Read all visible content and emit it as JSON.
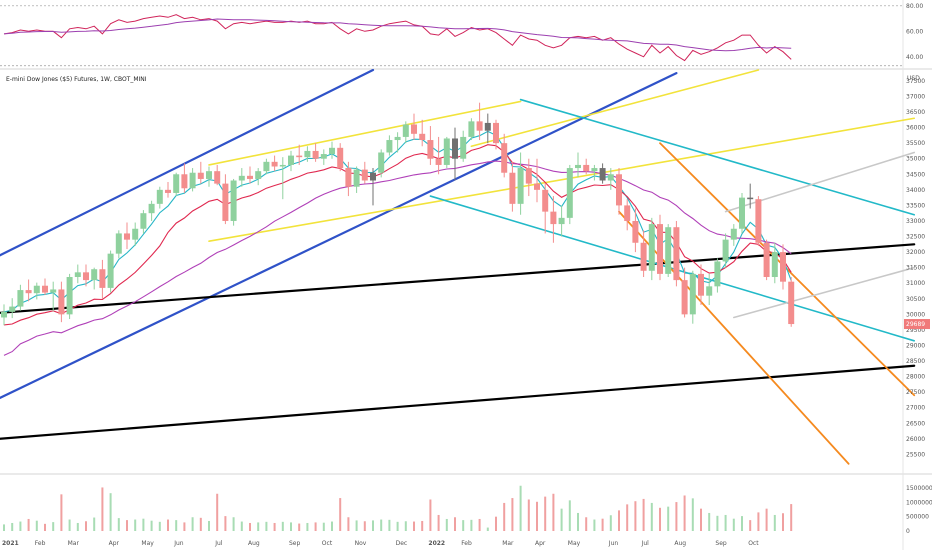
{
  "chart_data": {
    "type": "candlestick",
    "title": "E-mini Dow Jones ($5) Futures, 1W, CBOT_MINI",
    "price_axis": {
      "unit_label": "USD",
      "range": [
        25000,
        37850
      ],
      "ticks": [
        "37500",
        "37000",
        "36500",
        "36000",
        "35500",
        "35000",
        "34500",
        "34000",
        "33500",
        "33000",
        "32500",
        "32000",
        "31500",
        "31000",
        "30500",
        "30000",
        "29500",
        "29000",
        "28500",
        "28000",
        "27500",
        "27000",
        "26500",
        "26000",
        "25500"
      ],
      "last_price": "29689",
      "last_value": 29689
    },
    "rsi_axis": {
      "range": [
        32,
        83
      ],
      "ticks": [
        "80.00",
        "60.00",
        "40.00"
      ]
    },
    "volume_axis": {
      "range": [
        0,
        1850000
      ],
      "ticks": [
        "1500000",
        "1000000",
        "500000",
        "0"
      ]
    },
    "time_axis": {
      "labels": [
        "2021",
        "Feb",
        "Mar",
        "Apr",
        "May",
        "Jun",
        "Jul",
        "Aug",
        "Sep",
        "Oct",
        "Nov",
        "Dec",
        "2022",
        "Feb",
        "Mar",
        "Apr",
        "May",
        "Jun",
        "Jul",
        "Aug",
        "Sep",
        "Oct"
      ]
    },
    "colors": {
      "up": "#8fd19e",
      "down": "#f38d8d",
      "neutral": "#707070",
      "ema_fast": "#26b6c6",
      "ema_mid": "#e0284f",
      "ema_slow": "#b040b8",
      "rsi": "#d0245a",
      "rsi_ma": "#9c3fb0",
      "label_bg": "#f07a7a",
      "blue_trend": "#2f52c8",
      "yellow_trend": "#f2e33b",
      "black_trend": "#000000",
      "cyan_trend": "#22b9c8",
      "orange_trend": "#f58a1f",
      "gray_trend": "#c8c8c8"
    },
    "candles": [
      {
        "o": 29900,
        "h": 30320,
        "l": 29650,
        "c": 30080,
        "v": 230000
      },
      {
        "o": 30080,
        "h": 30520,
        "l": 29880,
        "c": 30250,
        "v": 280000
      },
      {
        "o": 30250,
        "h": 30950,
        "l": 30120,
        "c": 30780,
        "v": 330000
      },
      {
        "o": 30780,
        "h": 31120,
        "l": 30420,
        "c": 30680,
        "v": 420000
      },
      {
        "o": 30680,
        "h": 31020,
        "l": 30480,
        "c": 30920,
        "v": 360000
      },
      {
        "o": 30920,
        "h": 31150,
        "l": 30620,
        "c": 30700,
        "v": 250000
      },
      {
        "o": 30700,
        "h": 31050,
        "l": 30100,
        "c": 30800,
        "v": 310000
      },
      {
        "o": 30800,
        "h": 31050,
        "l": 29750,
        "c": 30000,
        "v": 1280000
      },
      {
        "o": 30000,
        "h": 31300,
        "l": 29850,
        "c": 31200,
        "v": 400000
      },
      {
        "o": 31200,
        "h": 31600,
        "l": 31000,
        "c": 31350,
        "v": 280000
      },
      {
        "o": 31350,
        "h": 31600,
        "l": 30900,
        "c": 31100,
        "v": 340000
      },
      {
        "o": 31100,
        "h": 31500,
        "l": 30800,
        "c": 31450,
        "v": 470000
      },
      {
        "o": 31450,
        "h": 31750,
        "l": 30500,
        "c": 30850,
        "v": 1520000
      },
      {
        "o": 30850,
        "h": 32050,
        "l": 30700,
        "c": 31950,
        "v": 1320000
      },
      {
        "o": 31950,
        "h": 32700,
        "l": 31800,
        "c": 32600,
        "v": 450000
      },
      {
        "o": 32600,
        "h": 32950,
        "l": 32100,
        "c": 32400,
        "v": 380000
      },
      {
        "o": 32400,
        "h": 32950,
        "l": 32200,
        "c": 32750,
        "v": 400000
      },
      {
        "o": 32750,
        "h": 33350,
        "l": 32600,
        "c": 33250,
        "v": 430000
      },
      {
        "o": 33250,
        "h": 33650,
        "l": 33000,
        "c": 33550,
        "v": 360000
      },
      {
        "o": 33550,
        "h": 34100,
        "l": 33400,
        "c": 34000,
        "v": 320000
      },
      {
        "o": 34000,
        "h": 34250,
        "l": 33750,
        "c": 33900,
        "v": 400000
      },
      {
        "o": 33900,
        "h": 34550,
        "l": 33800,
        "c": 34500,
        "v": 380000
      },
      {
        "o": 34500,
        "h": 34850,
        "l": 33900,
        "c": 34050,
        "v": 300000
      },
      {
        "o": 34050,
        "h": 34700,
        "l": 33950,
        "c": 34550,
        "v": 480000
      },
      {
        "o": 34550,
        "h": 34900,
        "l": 34200,
        "c": 34350,
        "v": 460000
      },
      {
        "o": 34350,
        "h": 34750,
        "l": 34100,
        "c": 34600,
        "v": 350000
      },
      {
        "o": 34600,
        "h": 34800,
        "l": 34150,
        "c": 34200,
        "v": 1300000
      },
      {
        "o": 34200,
        "h": 34500,
        "l": 32900,
        "c": 33000,
        "v": 520000
      },
      {
        "o": 33000,
        "h": 34350,
        "l": 32850,
        "c": 34300,
        "v": 480000
      },
      {
        "o": 34300,
        "h": 34700,
        "l": 34100,
        "c": 34450,
        "v": 330000
      },
      {
        "o": 34450,
        "h": 34750,
        "l": 34200,
        "c": 34350,
        "v": 280000
      },
      {
        "o": 34350,
        "h": 34700,
        "l": 34150,
        "c": 34600,
        "v": 300000
      },
      {
        "o": 34600,
        "h": 35000,
        "l": 34500,
        "c": 34900,
        "v": 320000
      },
      {
        "o": 34900,
        "h": 35100,
        "l": 34600,
        "c": 34750,
        "v": 280000
      },
      {
        "o": 34750,
        "h": 35050,
        "l": 33700,
        "c": 34800,
        "v": 320000
      },
      {
        "o": 34800,
        "h": 35250,
        "l": 34600,
        "c": 35100,
        "v": 300000
      },
      {
        "o": 35100,
        "h": 35450,
        "l": 34800,
        "c": 35050,
        "v": 260000
      },
      {
        "o": 35050,
        "h": 35400,
        "l": 34900,
        "c": 35250,
        "v": 280000
      },
      {
        "o": 35250,
        "h": 35500,
        "l": 34900,
        "c": 35000,
        "v": 300000
      },
      {
        "o": 35000,
        "h": 35300,
        "l": 34800,
        "c": 35150,
        "v": 290000
      },
      {
        "o": 35150,
        "h": 35550,
        "l": 35000,
        "c": 35350,
        "v": 330000
      },
      {
        "o": 35350,
        "h": 35500,
        "l": 34600,
        "c": 34700,
        "v": 1150000
      },
      {
        "o": 34700,
        "h": 34900,
        "l": 33800,
        "c": 34100,
        "v": 480000
      },
      {
        "o": 34100,
        "h": 34750,
        "l": 33900,
        "c": 34650,
        "v": 370000
      },
      {
        "o": 34650,
        "h": 34900,
        "l": 34200,
        "c": 34300,
        "v": 340000
      },
      {
        "o": 34300,
        "h": 34700,
        "l": 33500,
        "c": 34550,
        "v": 370000
      },
      {
        "o": 34550,
        "h": 35300,
        "l": 34400,
        "c": 35200,
        "v": 400000
      },
      {
        "o": 35200,
        "h": 35750,
        "l": 35100,
        "c": 35600,
        "v": 390000
      },
      {
        "o": 35600,
        "h": 35850,
        "l": 35200,
        "c": 35700,
        "v": 320000
      },
      {
        "o": 35700,
        "h": 36200,
        "l": 35500,
        "c": 36100,
        "v": 340000
      },
      {
        "o": 36100,
        "h": 36450,
        "l": 35600,
        "c": 35800,
        "v": 330000
      },
      {
        "o": 35800,
        "h": 36250,
        "l": 35400,
        "c": 35600,
        "v": 350000
      },
      {
        "o": 35600,
        "h": 36050,
        "l": 34800,
        "c": 35000,
        "v": 1100000
      },
      {
        "o": 35000,
        "h": 35700,
        "l": 34500,
        "c": 34800,
        "v": 560000
      },
      {
        "o": 34800,
        "h": 35700,
        "l": 34700,
        "c": 35650,
        "v": 420000
      },
      {
        "o": 35650,
        "h": 36000,
        "l": 34300,
        "c": 35000,
        "v": 480000
      },
      {
        "o": 35000,
        "h": 35900,
        "l": 34900,
        "c": 35700,
        "v": 380000
      },
      {
        "o": 35700,
        "h": 36300,
        "l": 35600,
        "c": 36200,
        "v": 390000
      },
      {
        "o": 36200,
        "h": 36800,
        "l": 35600,
        "c": 35900,
        "v": 420000
      },
      {
        "o": 35900,
        "h": 36450,
        "l": 35500,
        "c": 36150,
        "v": 120000
      },
      {
        "o": 36150,
        "h": 36250,
        "l": 35300,
        "c": 35500,
        "v": 500000
      },
      {
        "o": 35500,
        "h": 35800,
        "l": 34400,
        "c": 34550,
        "v": 980000
      },
      {
        "o": 34550,
        "h": 34900,
        "l": 33300,
        "c": 33550,
        "v": 1150000
      },
      {
        "o": 33550,
        "h": 35200,
        "l": 33200,
        "c": 34700,
        "v": 1580000
      },
      {
        "o": 34700,
        "h": 35000,
        "l": 33800,
        "c": 34200,
        "v": 1100000
      },
      {
        "o": 34200,
        "h": 35000,
        "l": 33600,
        "c": 34000,
        "v": 1020000
      },
      {
        "o": 34000,
        "h": 34200,
        "l": 32600,
        "c": 33300,
        "v": 1200000
      },
      {
        "o": 33300,
        "h": 33800,
        "l": 32300,
        "c": 32900,
        "v": 1300000
      },
      {
        "o": 32900,
        "h": 33500,
        "l": 32500,
        "c": 33100,
        "v": 780000
      },
      {
        "o": 33100,
        "h": 34800,
        "l": 32900,
        "c": 34700,
        "v": 1070000
      },
      {
        "o": 34700,
        "h": 35200,
        "l": 34400,
        "c": 34800,
        "v": 630000
      },
      {
        "o": 34800,
        "h": 35000,
        "l": 34500,
        "c": 34600,
        "v": 480000
      },
      {
        "o": 34600,
        "h": 34800,
        "l": 34300,
        "c": 34700,
        "v": 400000
      },
      {
        "o": 34700,
        "h": 34850,
        "l": 34200,
        "c": 34300,
        "v": 430000
      },
      {
        "o": 34300,
        "h": 34700,
        "l": 34000,
        "c": 34500,
        "v": 550000
      },
      {
        "o": 34500,
        "h": 34700,
        "l": 33200,
        "c": 33500,
        "v": 720000
      },
      {
        "o": 33500,
        "h": 33700,
        "l": 32700,
        "c": 33000,
        "v": 930000
      },
      {
        "o": 33000,
        "h": 33400,
        "l": 32000,
        "c": 32300,
        "v": 1040000
      },
      {
        "o": 32300,
        "h": 32700,
        "l": 31200,
        "c": 31400,
        "v": 1120000
      },
      {
        "o": 31400,
        "h": 33100,
        "l": 31100,
        "c": 32900,
        "v": 980000
      },
      {
        "o": 32900,
        "h": 33200,
        "l": 31100,
        "c": 31300,
        "v": 810000
      },
      {
        "o": 31300,
        "h": 32900,
        "l": 31200,
        "c": 32800,
        "v": 850000
      },
      {
        "o": 32800,
        "h": 33000,
        "l": 30900,
        "c": 31100,
        "v": 1010000
      },
      {
        "o": 31100,
        "h": 31500,
        "l": 29900,
        "c": 30000,
        "v": 1240000
      },
      {
        "o": 30000,
        "h": 31400,
        "l": 29700,
        "c": 31300,
        "v": 1140000
      },
      {
        "o": 31300,
        "h": 31600,
        "l": 30300,
        "c": 30600,
        "v": 780000
      },
      {
        "o": 30600,
        "h": 31300,
        "l": 30300,
        "c": 30900,
        "v": 630000
      },
      {
        "o": 30900,
        "h": 31800,
        "l": 30700,
        "c": 31700,
        "v": 530000
      },
      {
        "o": 31700,
        "h": 32600,
        "l": 31500,
        "c": 32400,
        "v": 560000
      },
      {
        "o": 32400,
        "h": 32900,
        "l": 32200,
        "c": 32750,
        "v": 430000
      },
      {
        "o": 32750,
        "h": 33900,
        "l": 32600,
        "c": 33750,
        "v": 520000
      },
      {
        "o": 33750,
        "h": 34200,
        "l": 33400,
        "c": 33700,
        "v": 380000
      },
      {
        "o": 33700,
        "h": 33800,
        "l": 32200,
        "c": 32300,
        "v": 650000
      },
      {
        "o": 32300,
        "h": 32400,
        "l": 31100,
        "c": 31200,
        "v": 780000
      },
      {
        "o": 31200,
        "h": 32300,
        "l": 31000,
        "c": 32000,
        "v": 560000
      },
      {
        "o": 32000,
        "h": 32250,
        "l": 30800,
        "c": 31050,
        "v": 620000
      },
      {
        "o": 31050,
        "h": 31200,
        "l": 29600,
        "c": 29689,
        "v": 940000
      }
    ],
    "rsi": [
      58,
      59,
      61,
      60,
      61,
      60,
      60,
      55,
      62,
      63,
      62,
      64,
      58,
      66,
      69,
      67,
      68,
      70,
      71,
      72,
      71,
      73,
      70,
      71,
      69,
      70,
      68,
      62,
      66,
      67,
      66,
      67,
      68,
      67,
      67,
      68,
      67,
      68,
      66,
      66,
      67,
      62,
      58,
      62,
      60,
      61,
      64,
      66,
      67,
      68,
      65,
      64,
      58,
      57,
      62,
      56,
      59,
      63,
      61,
      62,
      59,
      54,
      49,
      57,
      54,
      53,
      49,
      47,
      49,
      55,
      56,
      55,
      56,
      53,
      55,
      50,
      46,
      43,
      40,
      49,
      43,
      48,
      41,
      37,
      45,
      42,
      44,
      47,
      51,
      53,
      57,
      57,
      49,
      43,
      48,
      44,
      38
    ],
    "trendlines": [
      {
        "name": "blue-channel-upper",
        "color": "blue_trend",
        "width": 2.2,
        "pts": [
          [
            -3,
            31570
          ],
          [
            45,
            37850
          ]
        ]
      },
      {
        "name": "blue-channel-lower",
        "color": "blue_trend",
        "width": 2.2,
        "pts": [
          [
            -3,
            27000
          ],
          [
            82,
            37750
          ]
        ]
      },
      {
        "name": "yellow-upper-short",
        "color": "yellow_trend",
        "width": 1.6,
        "pts": [
          [
            25,
            34800
          ],
          [
            63,
            36840
          ]
        ]
      },
      {
        "name": "yellow-upper-long",
        "color": "yellow_trend",
        "width": 1.6,
        "pts": [
          [
            57,
            35400
          ],
          [
            92,
            37850
          ]
        ]
      },
      {
        "name": "yellow-lower",
        "color": "yellow_trend",
        "width": 1.6,
        "pts": [
          [
            25,
            32350
          ],
          [
            111,
            36300
          ]
        ]
      },
      {
        "name": "black-upper",
        "color": "black_trend",
        "width": 2.2,
        "pts": [
          [
            -3,
            30000
          ],
          [
            111,
            32250
          ]
        ]
      },
      {
        "name": "black-lower",
        "color": "black_trend",
        "width": 2.2,
        "pts": [
          [
            -3,
            25950
          ],
          [
            111,
            28350
          ]
        ]
      },
      {
        "name": "cyan-upper",
        "color": "cyan_trend",
        "width": 1.6,
        "pts": [
          [
            63,
            36900
          ],
          [
            111,
            33200
          ]
        ]
      },
      {
        "name": "cyan-lower",
        "color": "cyan_trend",
        "width": 1.6,
        "pts": [
          [
            52,
            33800
          ],
          [
            111,
            29150
          ]
        ]
      },
      {
        "name": "orange-upper",
        "color": "orange_trend",
        "width": 1.8,
        "pts": [
          [
            80,
            35500
          ],
          [
            111,
            27400
          ]
        ]
      },
      {
        "name": "orange-lower",
        "color": "orange_trend",
        "width": 1.8,
        "pts": [
          [
            75,
            33300
          ],
          [
            103,
            25200
          ]
        ]
      },
      {
        "name": "gray-upper",
        "color": "gray_trend",
        "width": 1.6,
        "pts": [
          [
            88,
            33300
          ],
          [
            111,
            35200
          ]
        ]
      },
      {
        "name": "gray-lower",
        "color": "gray_trend",
        "width": 1.6,
        "pts": [
          [
            89,
            29900
          ],
          [
            111,
            31500
          ]
        ]
      }
    ]
  }
}
